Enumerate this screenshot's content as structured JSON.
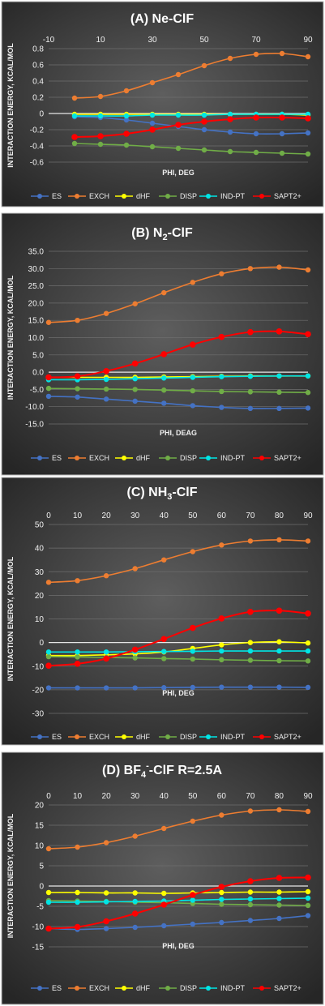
{
  "colors": {
    "ES": "#4472c4",
    "EXCH": "#ed7d31",
    "dHF": "#ffff00",
    "DISP": "#70ad47",
    "IND-PT": "#00e5e5",
    "SAPT2+": "#ff0000"
  },
  "chart_data": [
    {
      "type": "line",
      "title": "(A) Ne-ClF",
      "title_base": "(A) Ne-ClF",
      "title_sub": "",
      "title_sup": "",
      "title_tail": "",
      "xlabel": "PHI, DEG",
      "ylabel": "INTERACTION ENERGY, KCAL/MOL",
      "xlim": [
        -10,
        90
      ],
      "xticks": [
        -10,
        10,
        30,
        50,
        70,
        90
      ],
      "ylim": [
        -0.6,
        0.8
      ],
      "yticks": [
        -0.6,
        -0.4,
        -0.2,
        0,
        0.2,
        0.4,
        0.6,
        0.8
      ],
      "ytick_labels": [
        "-0.6",
        "-0.4",
        "-0.2",
        "0",
        "0.2",
        "0.4",
        "0.6",
        "0.8"
      ],
      "x": [
        0,
        10,
        20,
        30,
        40,
        50,
        60,
        70,
        80,
        90
      ],
      "series": [
        {
          "name": "ES",
          "values": [
            -0.04,
            -0.05,
            -0.08,
            -0.12,
            -0.16,
            -0.2,
            -0.23,
            -0.25,
            -0.25,
            -0.24
          ]
        },
        {
          "name": "EXCH",
          "values": [
            0.19,
            0.21,
            0.28,
            0.38,
            0.48,
            0.59,
            0.68,
            0.73,
            0.74,
            0.7
          ]
        },
        {
          "name": "dHF",
          "values": [
            -0.01,
            -0.01,
            -0.01,
            -0.01,
            -0.01,
            -0.01,
            -0.01,
            -0.01,
            -0.01,
            -0.02
          ]
        },
        {
          "name": "DISP",
          "values": [
            -0.37,
            -0.38,
            -0.39,
            -0.41,
            -0.43,
            -0.45,
            -0.47,
            -0.48,
            -0.49,
            -0.5
          ]
        },
        {
          "name": "IND-PT",
          "values": [
            -0.03,
            -0.03,
            -0.03,
            -0.02,
            -0.02,
            -0.02,
            -0.01,
            -0.01,
            -0.01,
            -0.01
          ]
        },
        {
          "name": "SAPT2+",
          "values": [
            -0.29,
            -0.28,
            -0.25,
            -0.2,
            -0.14,
            -0.1,
            -0.07,
            -0.05,
            -0.05,
            -0.06
          ]
        }
      ],
      "legend": "bottom",
      "grid": true
    },
    {
      "type": "line",
      "title": "(B) N2-ClF",
      "title_base": "(B) N",
      "title_sub": "2",
      "title_sup": "",
      "title_tail": "-ClF",
      "xlabel": "PHI, DEAG",
      "ylabel": "INTERACTION ENERGY, KCAL/MOL",
      "xlim": [
        0,
        90
      ],
      "xticks": [],
      "ylim": [
        -15,
        35
      ],
      "yticks": [
        -15,
        -10,
        -5,
        0,
        5,
        10,
        15,
        20,
        25,
        30,
        35
      ],
      "ytick_labels": [
        "-15.0",
        "-10.0",
        "-5.0",
        "0.0",
        "5.0",
        "10.0",
        "15.0",
        "20.0",
        "25.0",
        "30.0",
        "35.0"
      ],
      "x": [
        0,
        10,
        20,
        30,
        40,
        50,
        60,
        70,
        80,
        90
      ],
      "series": [
        {
          "name": "ES",
          "values": [
            -7.0,
            -7.2,
            -7.8,
            -8.4,
            -9.0,
            -9.7,
            -10.2,
            -10.5,
            -10.5,
            -10.4
          ]
        },
        {
          "name": "EXCH",
          "values": [
            14.4,
            15.0,
            17.0,
            19.8,
            23.0,
            26.0,
            28.5,
            30.0,
            30.4,
            29.6
          ]
        },
        {
          "name": "dHF",
          "values": [
            -1.5,
            -1.5,
            -1.5,
            -1.5,
            -1.4,
            -1.3,
            -1.2,
            -1.1,
            -1.1,
            -1.1
          ]
        },
        {
          "name": "DISP",
          "values": [
            -4.7,
            -4.8,
            -4.9,
            -5.0,
            -5.2,
            -5.4,
            -5.6,
            -5.7,
            -5.8,
            -5.9
          ]
        },
        {
          "name": "IND-PT",
          "values": [
            -2.2,
            -2.2,
            -2.1,
            -1.9,
            -1.7,
            -1.5,
            -1.3,
            -1.2,
            -1.1,
            -1.1
          ]
        },
        {
          "name": "SAPT2+",
          "values": [
            -1.5,
            -1.2,
            0.3,
            2.5,
            5.2,
            8.0,
            10.2,
            11.6,
            11.8,
            11.0
          ]
        }
      ],
      "legend": "bottom",
      "grid": true
    },
    {
      "type": "line",
      "title": "(C) NH3-ClF",
      "title_base": "(C) NH",
      "title_sub": "3",
      "title_sup": "",
      "title_tail": "-ClF",
      "xlabel": "PHI, DEG",
      "ylabel": "INTERACTION ENERGY, KCAL/MOL",
      "xlim": [
        0,
        90
      ],
      "xticks": [
        0,
        10,
        20,
        30,
        40,
        50,
        60,
        70,
        80,
        90
      ],
      "ylim": [
        -30,
        50
      ],
      "yticks": [
        -30,
        -20,
        -10,
        0,
        10,
        20,
        30,
        40,
        50
      ],
      "ytick_labels": [
        "-30",
        "-20",
        "-10",
        "0",
        "10",
        "20",
        "30",
        "40",
        "50"
      ],
      "x": [
        0,
        10,
        20,
        30,
        40,
        50,
        60,
        70,
        80,
        90
      ],
      "series": [
        {
          "name": "ES",
          "values": [
            -19.2,
            -19.2,
            -19.2,
            -19.2,
            -19.1,
            -19.0,
            -18.9,
            -18.9,
            -18.9,
            -19.0
          ]
        },
        {
          "name": "EXCH",
          "values": [
            25.5,
            26.2,
            28.3,
            31.3,
            35.0,
            38.5,
            41.3,
            43.0,
            43.5,
            43.0
          ]
        },
        {
          "name": "dHF",
          "values": [
            -5.5,
            -5.5,
            -5.2,
            -4.8,
            -4.0,
            -2.5,
            -1.0,
            0.0,
            0.3,
            -0.2
          ]
        },
        {
          "name": "DISP",
          "values": [
            -6.0,
            -6.1,
            -6.3,
            -6.5,
            -6.8,
            -7.0,
            -7.3,
            -7.5,
            -7.7,
            -7.8
          ]
        },
        {
          "name": "IND-PT",
          "values": [
            -4.0,
            -4.0,
            -4.0,
            -3.9,
            -3.8,
            -3.7,
            -3.6,
            -3.6,
            -3.6,
            -3.6
          ]
        },
        {
          "name": "SAPT2+",
          "values": [
            -9.8,
            -9.0,
            -6.8,
            -3.0,
            1.5,
            6.2,
            10.2,
            13.0,
            13.5,
            12.3
          ]
        }
      ],
      "legend": "bottom",
      "grid": true
    },
    {
      "type": "line",
      "title": "(D) BF4--ClF R=2.5A",
      "title_base": "(D) BF",
      "title_sub": "4",
      "title_sup": "-",
      "title_tail": "-ClF R=2.5A",
      "xlabel": "PHI, DEG",
      "ylabel": "INTERACTION ENERGY, KCAL/MOL",
      "xlim": [
        0,
        90
      ],
      "xticks": [
        0,
        10,
        20,
        30,
        40,
        50,
        60,
        70,
        80,
        90
      ],
      "ylim": [
        -15,
        20
      ],
      "yticks": [
        -15,
        -10,
        -5,
        0,
        5,
        10,
        15,
        20
      ],
      "ytick_labels": [
        "-15",
        "-10",
        "-5",
        "0",
        "5",
        "10",
        "15",
        "20"
      ],
      "x": [
        0,
        10,
        20,
        30,
        40,
        50,
        60,
        70,
        80,
        90
      ],
      "series": [
        {
          "name": "ES",
          "values": [
            -10.5,
            -10.7,
            -10.5,
            -10.2,
            -9.8,
            -9.4,
            -9.0,
            -8.5,
            -8.0,
            -7.3
          ]
        },
        {
          "name": "EXCH",
          "values": [
            9.2,
            9.6,
            10.7,
            12.3,
            14.2,
            16.0,
            17.5,
            18.5,
            18.8,
            18.4
          ]
        },
        {
          "name": "dHF",
          "values": [
            -1.6,
            -1.6,
            -1.7,
            -1.7,
            -1.8,
            -1.7,
            -1.6,
            -1.5,
            -1.5,
            -1.4
          ]
        },
        {
          "name": "DISP",
          "values": [
            -3.6,
            -3.7,
            -3.8,
            -4.0,
            -4.1,
            -4.3,
            -4.5,
            -4.6,
            -4.7,
            -4.8
          ]
        },
        {
          "name": "IND-PT",
          "values": [
            -4.0,
            -4.0,
            -3.9,
            -3.8,
            -3.7,
            -3.5,
            -3.3,
            -3.2,
            -3.1,
            -3.0
          ]
        },
        {
          "name": "SAPT2+",
          "values": [
            -10.5,
            -10.1,
            -8.7,
            -6.8,
            -4.6,
            -2.2,
            -0.2,
            1.2,
            2.0,
            2.1
          ]
        }
      ],
      "legend": "bottom",
      "grid": true
    }
  ]
}
